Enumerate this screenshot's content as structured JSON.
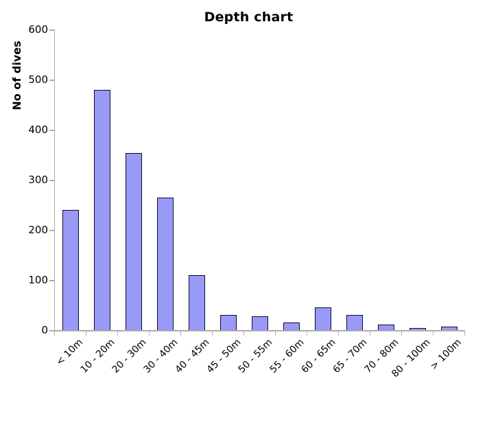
{
  "page": {
    "background": "#ffffff"
  },
  "chart_data": {
    "type": "bar",
    "title": "Depth chart",
    "ylabel": "No of dives",
    "xlabel": "",
    "categories": [
      "< 10m",
      "10 - 20m",
      "20 - 30m",
      "30 - 40m",
      "40 - 45m",
      "45 - 50m",
      "50 - 55m",
      "55 - 60m",
      "60 - 65m",
      "65 - 70m",
      "70 - 80m",
      "80 - 100m",
      "> 100m"
    ],
    "values": [
      240,
      480,
      353,
      265,
      110,
      30,
      27,
      15,
      45,
      30,
      11,
      4,
      7
    ],
    "yticks": [
      0,
      100,
      200,
      300,
      400,
      500,
      600
    ],
    "ylim": [
      0,
      600
    ],
    "grid": false,
    "legend": false,
    "colors": {
      "bar_fill": "#9999f7",
      "bar_border": "#0a0a2a",
      "axis": "#ababab",
      "text": "#000000"
    }
  }
}
